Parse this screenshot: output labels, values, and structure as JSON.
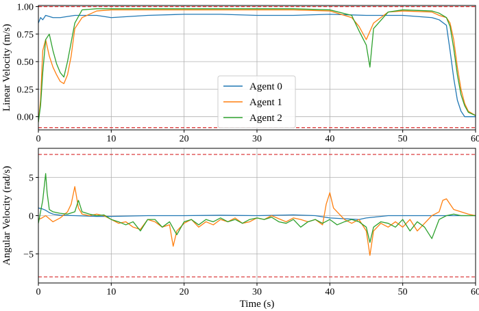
{
  "chart_data": [
    {
      "type": "line",
      "ylabel": "Linear Velocity (m/s)",
      "xlabel": "",
      "xlim": [
        0,
        60
      ],
      "ylim": [
        -0.12,
        1.01
      ],
      "xticks": [
        0,
        10,
        20,
        30,
        40,
        50,
        60
      ],
      "yticks": [
        0.0,
        0.25,
        0.5,
        0.75,
        1.0
      ],
      "ytick_labels": [
        "0.00",
        "0.25",
        "0.50",
        "0.75",
        "1.00"
      ],
      "grid": true,
      "legend": "center",
      "limits": [
        1.0,
        -0.1
      ],
      "series": [
        {
          "name": "Agent 0",
          "color": "#1f77b4",
          "x": [
            0,
            0.3,
            0.6,
            1,
            2,
            3,
            5,
            8,
            10,
            15,
            20,
            25,
            30,
            35,
            40,
            45,
            50,
            54,
            55,
            56,
            56.5,
            57,
            57.5,
            58,
            58.5,
            59,
            60
          ],
          "y": [
            0.85,
            0.9,
            0.88,
            0.92,
            0.9,
            0.9,
            0.92,
            0.92,
            0.9,
            0.92,
            0.93,
            0.93,
            0.92,
            0.92,
            0.93,
            0.92,
            0.92,
            0.9,
            0.88,
            0.83,
            0.6,
            0.35,
            0.15,
            0.05,
            0.0,
            0.0,
            0.0
          ]
        },
        {
          "name": "Agent 1",
          "color": "#ff7f0e",
          "x": [
            0,
            0.3,
            0.6,
            1,
            1.5,
            2,
            2.5,
            3,
            3.5,
            4,
            4.5,
            5,
            6,
            8,
            10,
            15,
            20,
            25,
            30,
            35,
            40,
            43,
            44,
            45,
            46,
            48,
            50,
            54,
            55,
            56,
            56.5,
            57,
            57.5,
            58,
            58.5,
            59,
            60
          ],
          "y": [
            -0.05,
            0.15,
            0.6,
            0.7,
            0.55,
            0.45,
            0.38,
            0.32,
            0.3,
            0.38,
            0.55,
            0.8,
            0.9,
            0.96,
            0.97,
            0.97,
            0.97,
            0.97,
            0.97,
            0.97,
            0.96,
            0.9,
            0.82,
            0.7,
            0.85,
            0.95,
            0.96,
            0.95,
            0.92,
            0.9,
            0.85,
            0.7,
            0.45,
            0.25,
            0.12,
            0.05,
            0.01
          ]
        },
        {
          "name": "Agent 2",
          "color": "#2ca02c",
          "x": [
            0,
            0.3,
            0.6,
            1,
            1.5,
            2,
            2.5,
            3,
            3.5,
            4,
            5,
            6,
            8,
            10,
            15,
            20,
            25,
            30,
            35,
            40,
            43,
            44,
            45,
            45.5,
            46,
            48,
            50,
            54,
            55,
            56,
            56.5,
            57,
            57.5,
            58,
            58.5,
            59,
            60
          ],
          "y": [
            -0.05,
            0.1,
            0.4,
            0.7,
            0.75,
            0.6,
            0.48,
            0.4,
            0.36,
            0.5,
            0.85,
            0.97,
            0.98,
            0.98,
            0.98,
            0.98,
            0.98,
            0.98,
            0.98,
            0.97,
            0.92,
            0.78,
            0.65,
            0.45,
            0.8,
            0.95,
            0.97,
            0.96,
            0.94,
            0.9,
            0.82,
            0.62,
            0.38,
            0.2,
            0.1,
            0.04,
            0.01
          ]
        }
      ]
    },
    {
      "type": "line",
      "ylabel": "Angular Velocity (rad/s)",
      "xlabel": "Time (s)",
      "xlim": [
        0,
        60
      ],
      "ylim": [
        -8.8,
        8.8
      ],
      "xticks": [
        0,
        10,
        20,
        30,
        40,
        50,
        60
      ],
      "yticks": [
        -5,
        0,
        5
      ],
      "ytick_labels": [
        "−5",
        "0",
        "5"
      ],
      "grid": true,
      "limits": [
        8,
        -8
      ],
      "series": [
        {
          "name": "Agent 0",
          "color": "#1f77b4",
          "x": [
            0,
            0.5,
            1,
            1.5,
            2,
            3,
            5,
            8,
            10,
            15,
            20,
            25,
            30,
            35,
            38,
            40,
            42,
            44,
            45,
            48,
            50,
            55,
            58,
            60
          ],
          "y": [
            1.0,
            0.9,
            0.7,
            0.4,
            0.2,
            0.05,
            0.0,
            -0.1,
            -0.1,
            0.0,
            0.0,
            0.05,
            0.0,
            0.1,
            0.0,
            -0.3,
            -0.4,
            -0.5,
            -0.3,
            0.0,
            0.0,
            0.0,
            0.0,
            0.0
          ]
        },
        {
          "name": "Agent 1",
          "color": "#ff7f0e",
          "x": [
            0,
            0.5,
            1,
            2,
            3,
            4,
            4.5,
            5,
            5.5,
            6,
            7,
            8,
            9,
            10,
            11,
            12,
            13,
            14,
            15,
            16,
            17,
            18,
            18.5,
            19,
            20,
            21,
            22,
            23,
            24,
            25,
            26,
            27,
            28,
            29,
            30,
            31,
            32,
            33,
            34,
            35,
            36,
            37,
            38,
            39,
            39.5,
            40,
            40.5,
            41,
            42,
            43,
            44,
            45,
            45.5,
            46,
            47,
            48,
            49,
            50,
            51,
            52,
            53,
            54,
            55,
            55.5,
            56,
            57,
            58,
            59,
            60
          ],
          "y": [
            -0.5,
            -0.3,
            0.0,
            -0.8,
            -0.3,
            0.5,
            1.5,
            3.8,
            1.0,
            0.2,
            0.0,
            0.2,
            0.0,
            -0.5,
            -1.0,
            -0.8,
            -1.5,
            -1.8,
            -0.5,
            -0.8,
            -1.5,
            -1.2,
            -4.0,
            -2.0,
            -1.0,
            -0.5,
            -1.5,
            -0.8,
            -1.2,
            -0.5,
            -0.8,
            -0.3,
            -1.0,
            -0.8,
            -0.3,
            -0.5,
            0.0,
            -0.4,
            -0.8,
            -0.3,
            -0.5,
            -0.8,
            -0.5,
            -1.2,
            1.5,
            3.0,
            1.0,
            0.5,
            -0.5,
            -1.0,
            -0.5,
            -2.0,
            -5.2,
            -2.0,
            -1.0,
            -1.5,
            -0.8,
            -1.5,
            -0.5,
            -2.0,
            -1.0,
            0.0,
            0.5,
            2.0,
            2.2,
            0.8,
            0.5,
            0.2,
            0.0
          ]
        },
        {
          "name": "Agent 2",
          "color": "#2ca02c",
          "x": [
            0,
            0.3,
            0.6,
            1,
            1.2,
            1.5,
            2,
            3,
            4,
            5,
            5.5,
            6,
            7,
            8,
            9,
            10,
            11,
            12,
            13,
            14,
            15,
            16,
            17,
            18,
            19,
            20,
            21,
            22,
            23,
            24,
            25,
            26,
            27,
            28,
            29,
            30,
            31,
            32,
            33,
            34,
            35,
            36,
            37,
            38,
            39,
            40,
            41,
            42,
            43,
            44,
            45,
            45.5,
            46,
            47,
            48,
            49,
            50,
            51,
            52,
            53,
            54,
            55,
            56,
            57,
            58,
            59,
            60
          ],
          "y": [
            -1.0,
            0.5,
            2.0,
            5.5,
            3.0,
            0.8,
            0.5,
            0.3,
            0.2,
            0.5,
            2.0,
            0.5,
            0.2,
            0.0,
            0.1,
            -0.5,
            -0.8,
            -1.2,
            -0.8,
            -2.0,
            -0.5,
            -0.5,
            -1.5,
            -0.8,
            -2.5,
            -0.8,
            -0.5,
            -1.2,
            -0.5,
            -0.8,
            -0.3,
            -0.8,
            -0.5,
            -1.0,
            -0.5,
            -0.3,
            -0.5,
            -0.2,
            -0.8,
            -1.0,
            -0.5,
            -1.5,
            -0.8,
            -0.5,
            -1.0,
            -0.5,
            -1.2,
            -0.8,
            -0.5,
            -0.8,
            -1.5,
            -3.5,
            -1.5,
            -0.8,
            -1.0,
            -1.5,
            -0.5,
            -2.0,
            -0.8,
            -1.5,
            -3.0,
            -0.5,
            0.0,
            0.2,
            0.0,
            0.0,
            0.0
          ]
        }
      ]
    }
  ]
}
